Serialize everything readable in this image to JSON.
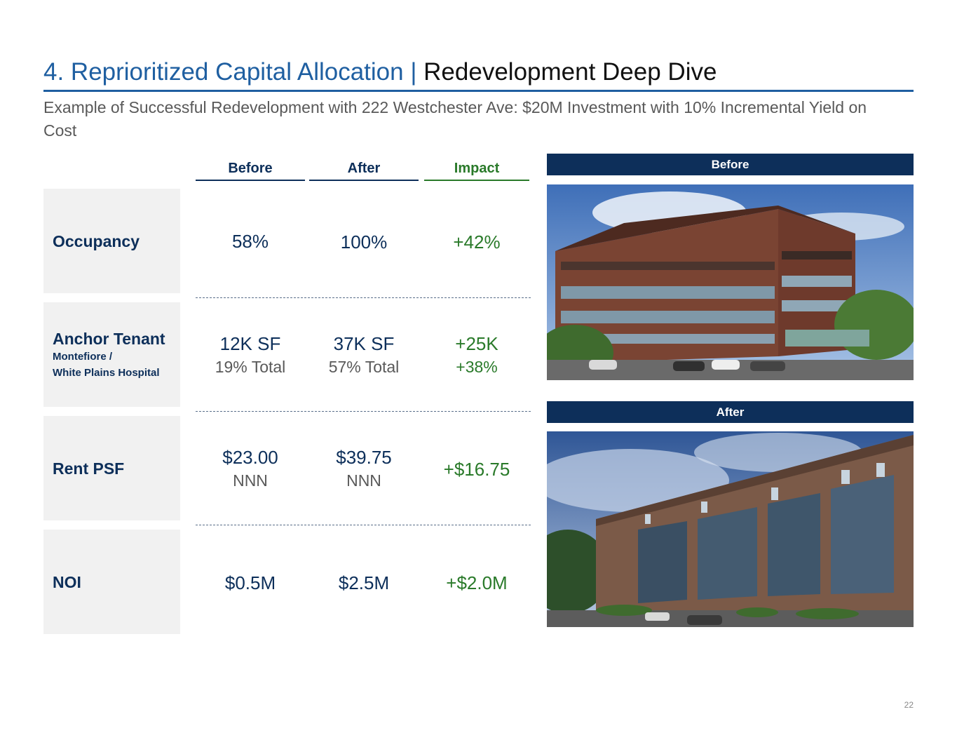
{
  "header": {
    "section": "4. Reprioritized Capital Allocation |",
    "title": "Redevelopment Deep Dive",
    "subtitle": "Example of Successful Redevelopment with 222 Westchester Ave: $20M Investment with 10% Incremental Yield on Cost"
  },
  "columns": {
    "before": "Before",
    "after": "After",
    "impact": "Impact"
  },
  "rows": [
    {
      "label": "Occupancy",
      "before": "58%",
      "after": "100%",
      "impact": "+42%"
    },
    {
      "label": "Anchor Tenant",
      "sub1": "Montefiore /",
      "sub2": "White Plains Hospital",
      "before": "12K SF",
      "before_sub": "19% Total",
      "after": "37K SF",
      "after_sub": "57% Total",
      "impact": "+25K",
      "impact_sub": "+38%"
    },
    {
      "label": "Rent PSF",
      "before": "$23.00",
      "before_sub": "NNN",
      "after": "$39.75",
      "after_sub": "NNN",
      "impact": "+$16.75"
    },
    {
      "label": "NOI",
      "before": "$0.5M",
      "after": "$2.5M",
      "impact": "+$2.0M"
    }
  ],
  "photos": {
    "before_label": "Before",
    "after_label": "After"
  },
  "page_number": "22",
  "colors": {
    "accent": "#1f5fa1",
    "navy": "#0d2f5a",
    "green": "#2a7a2a",
    "gray_text": "#595959",
    "label_bg": "#f1f1f1"
  }
}
